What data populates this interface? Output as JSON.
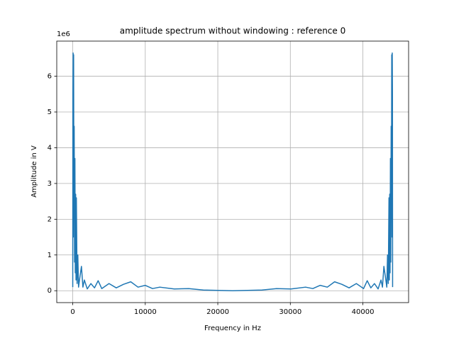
{
  "chart_data": {
    "type": "line",
    "title": "amplitude spectrum without windowing : reference 0",
    "x_label": "Frequency in Hz",
    "y_label": "Amplitude in V",
    "y_offset_label": "1e6",
    "xlim": [
      -2205,
      46305
    ],
    "xticks": [
      0,
      10000,
      20000,
      30000,
      40000
    ],
    "ylim": [
      -332500,
      6982500
    ],
    "yticks": [
      0,
      {
        "value": 1000000,
        "label": "1"
      },
      {
        "value": 2000000,
        "label": "2"
      },
      {
        "value": 3000000,
        "label": "3"
      },
      {
        "value": 4000000,
        "label": "4"
      },
      {
        "value": 5000000,
        "label": "5"
      },
      {
        "value": 6000000,
        "label": "6"
      }
    ],
    "grid": true,
    "series": [
      {
        "color": "#1f77b4",
        "x": [
          0,
          20,
          50,
          80,
          120,
          160,
          200,
          250,
          300,
          350,
          400,
          450,
          500,
          600,
          700,
          800,
          1000,
          1200,
          1400,
          1600,
          2000,
          2500,
          3000,
          3500,
          4000,
          5000,
          6000,
          7000,
          8000,
          9000,
          10000,
          11000,
          12000,
          14000,
          16000,
          18000,
          20000,
          22050,
          24100,
          26100,
          28100,
          30100,
          32100,
          33100,
          34100,
          35100,
          36100,
          37100,
          38100,
          39100,
          40100,
          40600,
          41100,
          41600,
          42100,
          42500,
          42700,
          42900,
          43100,
          43300,
          43400,
          43500,
          43600,
          43650,
          43700,
          43750,
          43800,
          43850,
          43900,
          43940,
          43980,
          44020,
          44050,
          44080,
          44100
        ],
        "values": [
          100000,
          5500000,
          6650000,
          1500000,
          6600000,
          2000000,
          4600000,
          800000,
          3700000,
          500000,
          2700000,
          300000,
          2600000,
          200000,
          1000000,
          100000,
          400000,
          680000,
          100000,
          300000,
          50000,
          200000,
          80000,
          280000,
          60000,
          200000,
          80000,
          180000,
          250000,
          100000,
          150000,
          60000,
          100000,
          50000,
          60000,
          20000,
          10000,
          0,
          10000,
          20000,
          60000,
          50000,
          100000,
          60000,
          150000,
          100000,
          250000,
          180000,
          80000,
          200000,
          60000,
          280000,
          80000,
          200000,
          50000,
          300000,
          100000,
          680000,
          400000,
          100000,
          1000000,
          200000,
          2600000,
          300000,
          2700000,
          500000,
          3700000,
          800000,
          4600000,
          2000000,
          6600000,
          1500000,
          6650000,
          5500000,
          100000
        ]
      }
    ]
  }
}
